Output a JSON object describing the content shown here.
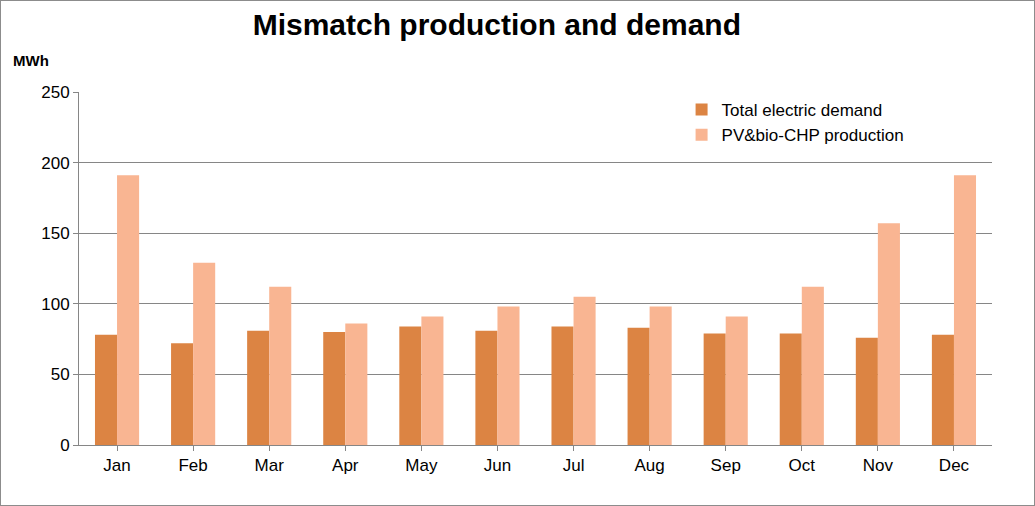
{
  "chart_data": {
    "type": "bar",
    "title": "Mismatch production and demand",
    "ylabel": "MWh",
    "categories": [
      "Jan",
      "Feb",
      "Mar",
      "Apr",
      "May",
      "Jun",
      "Jul",
      "Aug",
      "Sep",
      "Oct",
      "Nov",
      "Dec"
    ],
    "series": [
      {
        "name": "Total electric demand",
        "color": "#dc8443",
        "values": [
          78,
          72,
          81,
          80,
          84,
          81,
          84,
          83,
          79,
          79,
          76,
          78
        ]
      },
      {
        "name": "PV&bio-CHP production",
        "color": "#f9b592",
        "values": [
          191,
          129,
          112,
          86,
          91,
          98,
          105,
          98,
          91,
          112,
          157,
          191
        ]
      }
    ],
    "ylim": [
      0,
      250
    ],
    "yticks": [
      0,
      50,
      100,
      150,
      200,
      250
    ],
    "grid": true,
    "legend": "top right"
  }
}
